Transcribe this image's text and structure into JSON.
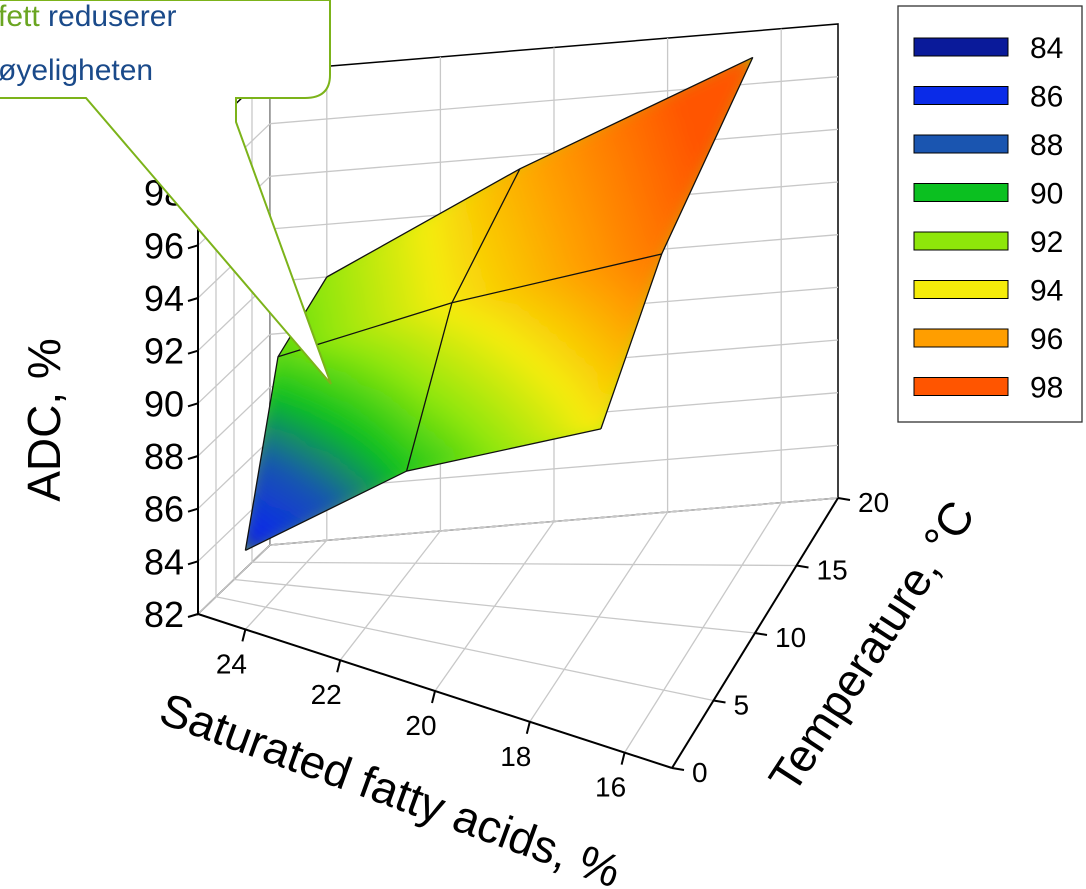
{
  "chart_data": {
    "type": "surface3d",
    "title": "",
    "xlabel": "Saturated fatty acids, %",
    "ylabel": "Temperature, °C",
    "zlabel": "ADC, %",
    "x_ticks": [
      "24",
      "22",
      "20",
      "18",
      "16"
    ],
    "y_ticks": [
      "0",
      "5",
      "10",
      "15",
      "20"
    ],
    "z_ticks": [
      "82",
      "84",
      "86",
      "88",
      "90",
      "92",
      "94",
      "96",
      "98"
    ],
    "xlim": [
      25,
      15
    ],
    "ylim": [
      0,
      20
    ],
    "zlim": [
      82,
      100
    ],
    "grid": true,
    "legend_position": "right",
    "legend": [
      {
        "label": "84",
        "color": "#0a1a9a"
      },
      {
        "label": "86",
        "color": "#0a2be8"
      },
      {
        "label": "88",
        "color": "#1a55b0"
      },
      {
        "label": "90",
        "color": "#0bc020"
      },
      {
        "label": "92",
        "color": "#8ee60a"
      },
      {
        "label": "94",
        "color": "#f5ec0a"
      },
      {
        "label": "96",
        "color": "#ff9e00"
      },
      {
        "label": "98",
        "color": "#ff5500"
      }
    ],
    "surface": {
      "x": [
        24,
        20.6,
        16.5
      ],
      "y": [
        0,
        8,
        20
      ],
      "z": [
        [
          85,
          90,
          94
        ],
        [
          91,
          94,
          97
        ],
        [
          92,
          95.5,
          99
        ]
      ]
    },
    "callout": {
      "highlight": "fett",
      "line1_rest": " reduserer",
      "line2": "øyeligheten"
    }
  }
}
